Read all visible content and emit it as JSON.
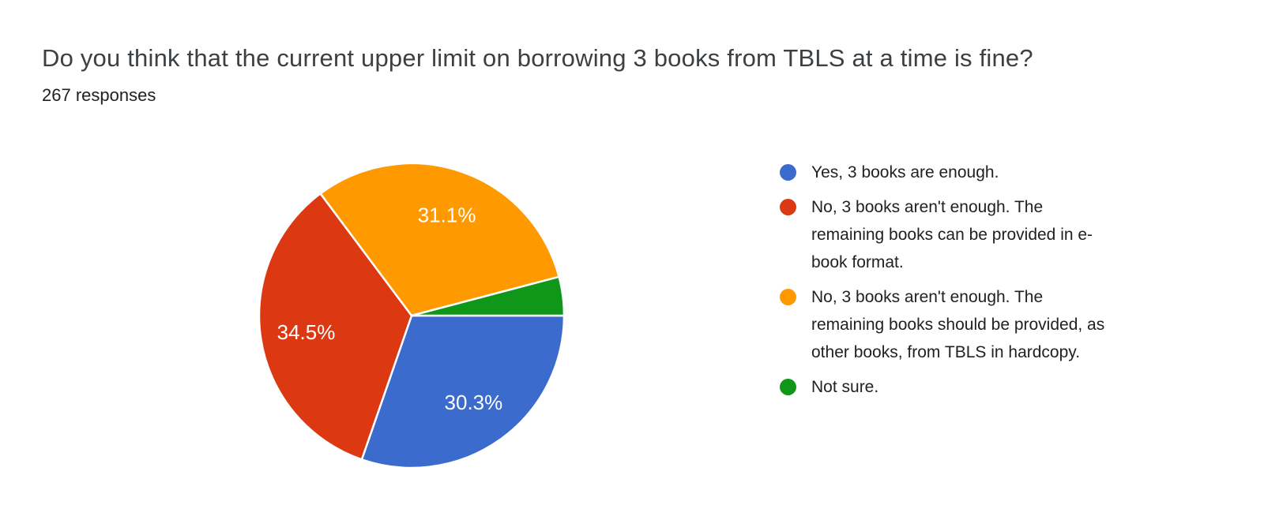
{
  "chart_data": {
    "type": "pie",
    "title": "Do you think that the current upper limit on borrowing 3 books from TBLS at a time is fine?",
    "subtitle": "267 responses",
    "start_angle_deg": 0,
    "direction": "clockwise",
    "legend_position": "right",
    "slice_border_color": "#ffffff",
    "label_radius_ratio": 0.7,
    "slices": [
      {
        "label": "Yes, 3 books are enough.",
        "value_pct": 30.3,
        "pct_label": "30.3%",
        "pct_label_visible": true,
        "color": "#3C6BCE",
        "legend_lines": [
          "Yes, 3 books are enough."
        ]
      },
      {
        "label": "No, 3 books aren't enough. The remaining books can be provided in e-book format.",
        "value_pct": 34.5,
        "pct_label": "34.5%",
        "pct_label_visible": true,
        "color": "#DC3912",
        "legend_lines": [
          "No, 3 books aren't enough. The",
          "remaining books can be provided in e-",
          "book format."
        ]
      },
      {
        "label": "No, 3 books aren't enough. The remaining books should be provided, as other books, from TBLS in hardcopy.",
        "value_pct": 31.1,
        "pct_label": "31.1%",
        "pct_label_visible": true,
        "color": "#FF9900",
        "legend_lines": [
          "No, 3 books aren't enough. The",
          "remaining books should be provided, as",
          "other books, from TBLS in hardcopy."
        ]
      },
      {
        "label": "Not sure.",
        "value_pct": 4.1,
        "pct_label": "4.1%",
        "pct_label_visible": false,
        "color": "#109618",
        "legend_lines": [
          "Not sure."
        ]
      }
    ]
  }
}
